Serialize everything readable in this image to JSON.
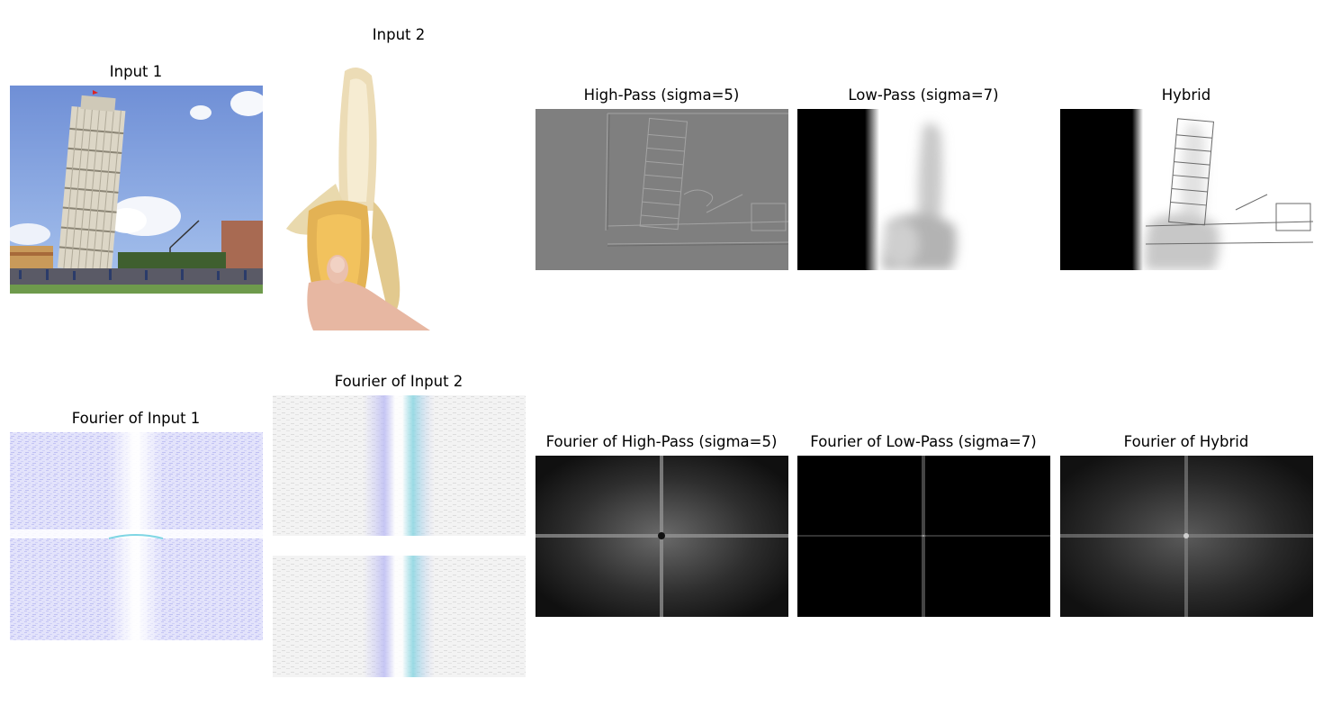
{
  "panels": {
    "input1": {
      "title": "Input 1"
    },
    "input2": {
      "title": "Input 2"
    },
    "highpass": {
      "title": "High-Pass (sigma=5)"
    },
    "lowpass": {
      "title": "Low-Pass (sigma=7)"
    },
    "hybrid": {
      "title": "Hybrid"
    },
    "fourier_input1": {
      "title": "Fourier of Input 1"
    },
    "fourier_input2": {
      "title": "Fourier of Input 2"
    },
    "fourier_highpass": {
      "title": "Fourier of High-Pass (sigma=5)"
    },
    "fourier_lowpass": {
      "title": "Fourier of Low-Pass (sigma=7)"
    },
    "fourier_hybrid": {
      "title": "Fourier of Hybrid"
    }
  }
}
